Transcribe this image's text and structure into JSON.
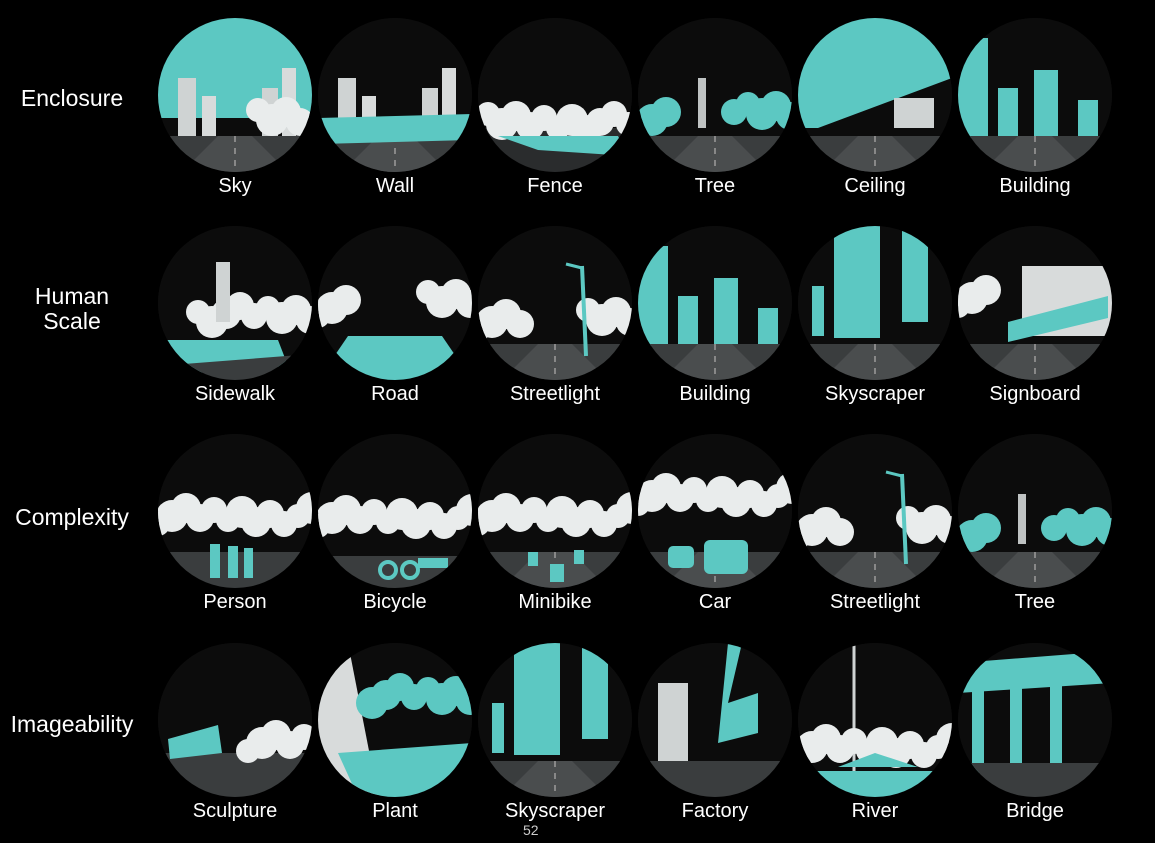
{
  "colors": {
    "background": "#000000",
    "highlight": "#5cc8c2",
    "scene": "#e9ecec",
    "text": "#ffffff"
  },
  "rows": [
    {
      "label": "Enclosure",
      "items": [
        {
          "caption": "Sky",
          "scene": "sky"
        },
        {
          "caption": "Wall",
          "scene": "wall"
        },
        {
          "caption": "Fence",
          "scene": "fence"
        },
        {
          "caption": "Tree",
          "scene": "tree"
        },
        {
          "caption": "Ceiling",
          "scene": "ceiling"
        },
        {
          "caption": "Building",
          "scene": "building"
        }
      ]
    },
    {
      "label": "Human\nScale",
      "items": [
        {
          "caption": "Sidewalk",
          "scene": "sidewalk"
        },
        {
          "caption": "Road",
          "scene": "road"
        },
        {
          "caption": "Streetlight",
          "scene": "streetlight"
        },
        {
          "caption": "Building",
          "scene": "building"
        },
        {
          "caption": "Skyscraper",
          "scene": "skyscraper"
        },
        {
          "caption": "Signboard",
          "scene": "signboard"
        }
      ]
    },
    {
      "label": "Complexity",
      "items": [
        {
          "caption": "Person",
          "scene": "person"
        },
        {
          "caption": "Bicycle",
          "scene": "bicycle"
        },
        {
          "caption": "Minibike",
          "scene": "minibike"
        },
        {
          "caption": "Car",
          "scene": "car"
        },
        {
          "caption": "Streetlight",
          "scene": "streetlight"
        },
        {
          "caption": "Tree",
          "scene": "tree"
        }
      ]
    },
    {
      "label": "Imageability",
      "items": [
        {
          "caption": "Sculpture",
          "scene": "sculpture"
        },
        {
          "caption": "Plant",
          "scene": "plant"
        },
        {
          "caption": "Skyscraper",
          "scene": "skyscraper"
        },
        {
          "caption": "Factory",
          "scene": "factory"
        },
        {
          "caption": "River",
          "scene": "river"
        },
        {
          "caption": "Bridge",
          "scene": "bridge"
        }
      ]
    }
  ],
  "page_number": "52"
}
